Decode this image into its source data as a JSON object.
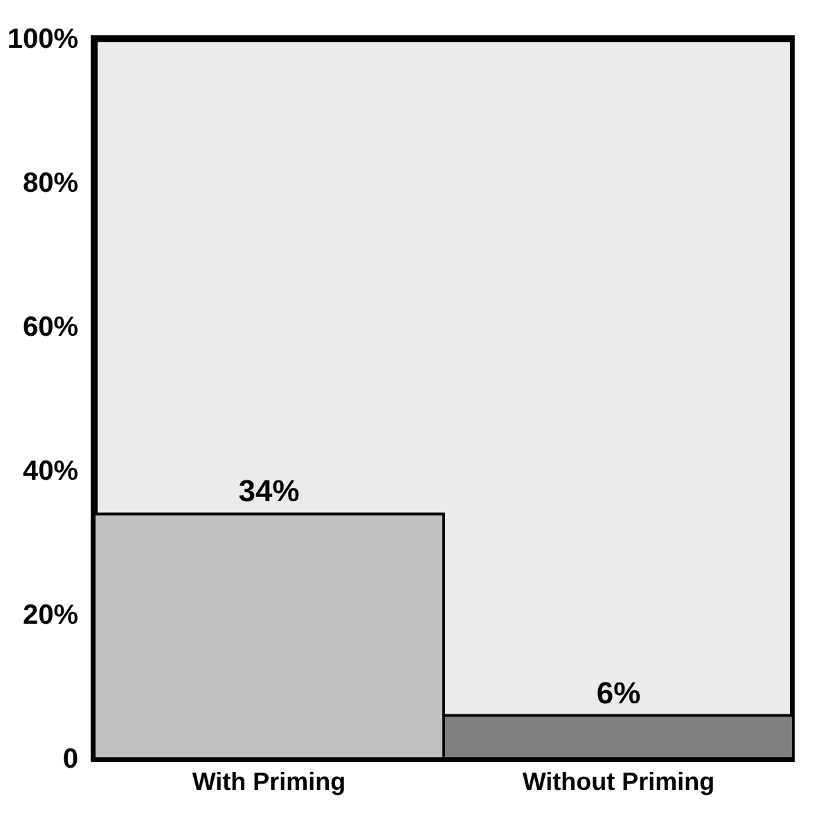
{
  "chart_data": {
    "type": "bar",
    "categories": [
      "With Priming",
      "Without Priming"
    ],
    "values": [
      34,
      6
    ],
    "colors": [
      "#c0c0c0",
      "#808080"
    ],
    "value_labels": [
      "34%",
      "6%"
    ],
    "ylim": [
      0,
      100
    ],
    "yticks": [
      {
        "value": 0,
        "label": "0"
      },
      {
        "value": 20,
        "label": "20%"
      },
      {
        "value": 40,
        "label": "40%"
      },
      {
        "value": 60,
        "label": "60%"
      },
      {
        "value": 80,
        "label": "80%"
      },
      {
        "value": 100,
        "label": "100%"
      }
    ],
    "grid": false
  }
}
